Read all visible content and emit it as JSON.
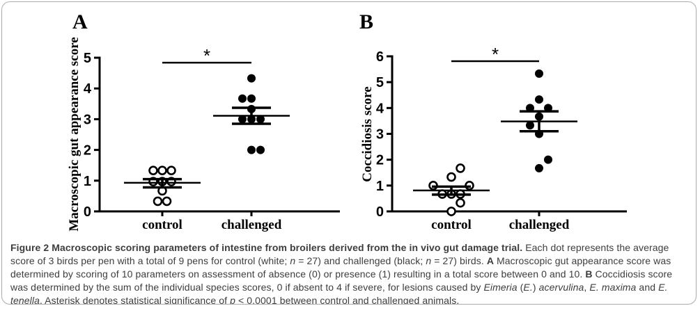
{
  "figure_box": {
    "border_color": "#ababab",
    "background": "#ffffff",
    "ink_color": "#000000",
    "caption_color": "#3d3d3d"
  },
  "chart_data": [
    {
      "type": "scatter",
      "panel_label": "A",
      "ylabel": "Macroscopic gut appearance score",
      "xlabel": "",
      "ylim": [
        0,
        5
      ],
      "yticks": [
        0,
        1,
        2,
        3,
        4,
        5
      ],
      "categories": [
        "control",
        "challenged"
      ],
      "grid": false,
      "legend": "none",
      "significance": {
        "symbol": "*",
        "y": 4.84,
        "between": [
          "control",
          "challenged"
        ]
      },
      "groups": [
        {
          "name": "control",
          "marker": "open-circle",
          "color": "#000000",
          "mean": 0.93,
          "error_low": 0.78,
          "error_high": 1.05,
          "points": [
            {
              "dx": -1,
              "y": 1.33
            },
            {
              "dx": 0,
              "y": 1.33
            },
            {
              "dx": 1,
              "y": 1.33
            },
            {
              "dx": -1,
              "y": 0.97
            },
            {
              "dx": 0,
              "y": 0.97
            },
            {
              "dx": 1,
              "y": 0.97
            },
            {
              "dx": 0,
              "y": 0.67
            },
            {
              "dx": -0.5,
              "y": 0.33
            },
            {
              "dx": 0.5,
              "y": 0.33
            }
          ]
        },
        {
          "name": "challenged",
          "marker": "filled-circle",
          "color": "#000000",
          "mean": 3.11,
          "error_low": 2.85,
          "error_high": 3.37,
          "points": [
            {
              "dx": 0,
              "y": 4.33
            },
            {
              "dx": -1,
              "y": 3.67
            },
            {
              "dx": 0,
              "y": 3.67
            },
            {
              "dx": 0,
              "y": 3.33
            },
            {
              "dx": -1,
              "y": 3.0
            },
            {
              "dx": 0,
              "y": 3.0
            },
            {
              "dx": 1,
              "y": 3.0
            },
            {
              "dx": 0,
              "y": 2.0
            },
            {
              "dx": 1,
              "y": 2.0
            }
          ]
        }
      ]
    },
    {
      "type": "scatter",
      "panel_label": "B",
      "ylabel": "Coccidiosis score",
      "xlabel": "",
      "ylim": [
        0,
        6
      ],
      "yticks": [
        0,
        1,
        2,
        3,
        4,
        5,
        6
      ],
      "categories": [
        "control",
        "challenged"
      ],
      "grid": false,
      "legend": "none",
      "significance": {
        "symbol": "*",
        "y": 5.81,
        "between": [
          "control",
          "challenged"
        ]
      },
      "groups": [
        {
          "name": "control",
          "marker": "open-circle",
          "color": "#000000",
          "mean": 0.81,
          "error_low": 0.65,
          "error_high": 0.96,
          "points": [
            {
              "dx": 1,
              "y": 1.67
            },
            {
              "dx": 0,
              "y": 1.33
            },
            {
              "dx": -2,
              "y": 1.0
            },
            {
              "dx": 2,
              "y": 1.0
            },
            {
              "dx": -1,
              "y": 0.67
            },
            {
              "dx": 0,
              "y": 0.67
            },
            {
              "dx": 1,
              "y": 0.67
            },
            {
              "dx": 1,
              "y": 0.33
            },
            {
              "dx": 0,
              "y": 0.0
            }
          ]
        },
        {
          "name": "challenged",
          "marker": "filled-circle",
          "color": "#000000",
          "mean": 3.48,
          "error_low": 3.1,
          "error_high": 3.87,
          "points": [
            {
              "dx": 0,
              "y": 5.33
            },
            {
              "dx": 0,
              "y": 4.33
            },
            {
              "dx": -1,
              "y": 4.0
            },
            {
              "dx": 1,
              "y": 4.0
            },
            {
              "dx": 0,
              "y": 3.67
            },
            {
              "dx": -1,
              "y": 3.33
            },
            {
              "dx": 0,
              "y": 3.0
            },
            {
              "dx": 1,
              "y": 2.0
            },
            {
              "dx": 0,
              "y": 1.67
            }
          ]
        }
      ]
    }
  ],
  "caption": {
    "segments": [
      {
        "t": "Figure 2",
        "b": 1
      },
      {
        "t": "  ",
        "b": 1
      },
      {
        "t": "Macroscopic scoring parameters of intestine from broilers derived from the in vivo gut damage trial.",
        "b": 1
      },
      {
        "t": " Each dot represents the average score of 3 birds per pen with a total of 9 pens for control (white; "
      },
      {
        "t": "n",
        "i": 1
      },
      {
        "t": " = 27) and challenged (black; "
      },
      {
        "t": "n",
        "i": 1
      },
      {
        "t": " = 27) birds. "
      },
      {
        "t": "A",
        "b": 1
      },
      {
        "t": " Macroscopic gut appearance score was determined by scoring of 10 parameters on assessment of absence (0) or presence (1) resulting in a total score between 0 and 10. "
      },
      {
        "t": "B",
        "b": 1
      },
      {
        "t": " Coccidiosis score was determined by the sum of the individual species scores, 0 if absent to 4 if severe, for lesions caused by "
      },
      {
        "t": "Eimeria",
        "i": 1
      },
      {
        "t": " ("
      },
      {
        "t": "E.",
        "i": 1
      },
      {
        "t": ") "
      },
      {
        "t": "acervulina",
        "i": 1
      },
      {
        "t": ", "
      },
      {
        "t": "E. maxima",
        "i": 1
      },
      {
        "t": " and "
      },
      {
        "t": "E. tenella",
        "i": 1
      },
      {
        "t": ". Asterisk denotes statistical significance of "
      },
      {
        "t": "p",
        "i": 1
      },
      {
        "t": " < 0.0001 between control and challenged animals."
      }
    ]
  }
}
